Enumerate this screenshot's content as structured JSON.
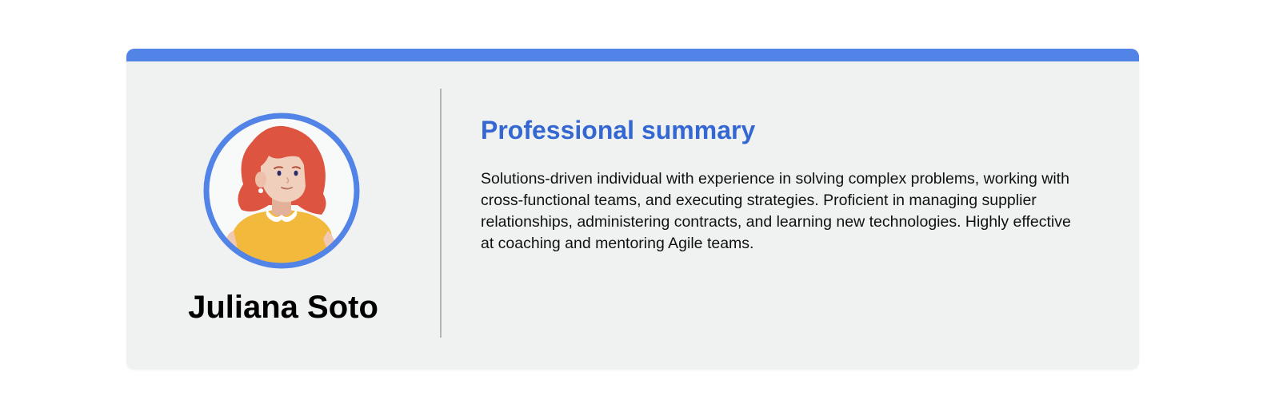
{
  "profile": {
    "name": "Juliana Soto",
    "avatar_icon": "person-avatar-icon"
  },
  "summary": {
    "title": "Professional summary",
    "text": "Solutions-driven individual with experience in solving complex problems, working with cross-functional teams, and executing strategies. Proficient in managing supplier relationships, administering contracts, and learning new technologies. Highly effective at coaching and mentoring Agile teams."
  },
  "colors": {
    "accent": "#5184e6",
    "title": "#3467d2",
    "card_background": "#f0f2f2",
    "hair": "#dd5440",
    "shirt": "#f2b93d"
  }
}
